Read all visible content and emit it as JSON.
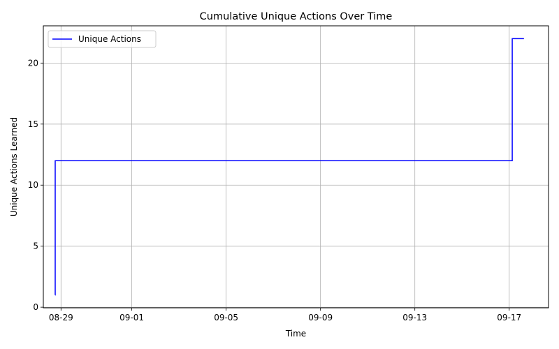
{
  "chart_data": {
    "type": "line",
    "title": "Cumulative Unique Actions Over Time",
    "xlabel": "Time",
    "ylabel": "Unique Actions Learned",
    "xlim": [
      "2024-08-28T06:00",
      "2024-09-18T16:00"
    ],
    "ylim": [
      -0.05,
      23.05
    ],
    "x_ticks": [
      {
        "value": "2024-08-29T00:00",
        "label": "08-29"
      },
      {
        "value": "2024-09-01T00:00",
        "label": "09-01"
      },
      {
        "value": "2024-09-05T00:00",
        "label": "09-05"
      },
      {
        "value": "2024-09-09T00:00",
        "label": "09-09"
      },
      {
        "value": "2024-09-13T00:00",
        "label": "09-13"
      },
      {
        "value": "2024-09-17T00:00",
        "label": "09-17"
      }
    ],
    "y_ticks": [
      0,
      5,
      10,
      15,
      20
    ],
    "grid": true,
    "legend": "upper-left",
    "series": [
      {
        "name": "Unique Actions",
        "color": "#0000ff",
        "step": true,
        "points": [
          {
            "x": "2024-08-28T18:00",
            "y": 1
          },
          {
            "x": "2024-08-28T18:05",
            "y": 12
          },
          {
            "x": "2024-09-17T03:00",
            "y": 12
          },
          {
            "x": "2024-09-17T03:05",
            "y": 22
          },
          {
            "x": "2024-09-17T15:00",
            "y": 22
          }
        ]
      }
    ]
  }
}
